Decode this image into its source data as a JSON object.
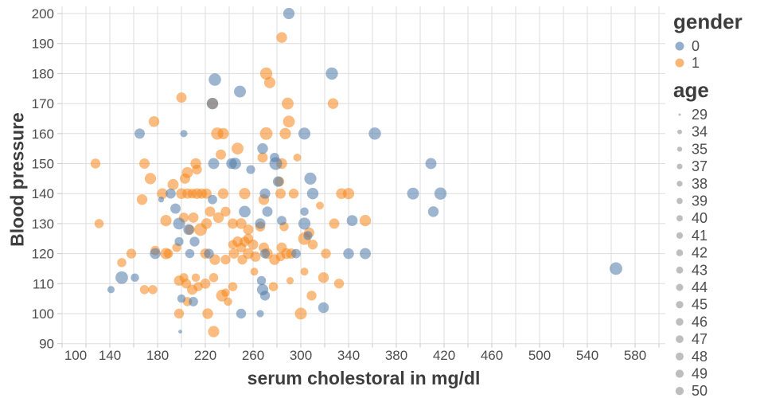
{
  "chart_data": {
    "type": "scatter",
    "title": "",
    "xlabel": "serum cholestoral in mg/dl",
    "ylabel": "Blood pressure",
    "xlim": [
      87,
      604
    ],
    "ylim": [
      87,
      202
    ],
    "x_ticks": [
      100,
      140,
      180,
      220,
      260,
      300,
      340,
      380,
      420,
      460,
      500,
      540,
      580
    ],
    "x_gridline_step": 20,
    "y_ticks": [
      90,
      100,
      110,
      120,
      130,
      140,
      150,
      160,
      170,
      180,
      190,
      200
    ],
    "grid": true,
    "grid_color": "#dddddd",
    "tick_label_color": "#4d4d4d",
    "point_opacity": 0.55,
    "legend": {
      "position": "right",
      "color_legend": {
        "title": "gender",
        "entries": [
          {
            "label": "0",
            "color": "#4c78a8"
          },
          {
            "label": "1",
            "color": "#f58518"
          }
        ]
      },
      "size_legend": {
        "title": "age",
        "symbol_color": "#b7b7b7",
        "entries": [
          29,
          34,
          35,
          37,
          38,
          39,
          40,
          41,
          42,
          43,
          44,
          45,
          46,
          47,
          48,
          49,
          50
        ]
      }
    },
    "series": [
      {
        "name": "gender 1",
        "gender": "1",
        "color": "#f58518",
        "point_format": [
          "serum cholestoral in mg/dl",
          "Blood pressure",
          "age"
        ],
        "points": [
          [
            284,
            192,
            52
          ],
          [
            271,
            180,
            60
          ],
          [
            274,
            177,
            55
          ],
          [
            200,
            172,
            50
          ],
          [
            327,
            170,
            52
          ],
          [
            226,
            170,
            54
          ],
          [
            289,
            170,
            58
          ],
          [
            290,
            164,
            58
          ],
          [
            177,
            164,
            52
          ],
          [
            230,
            160,
            60
          ],
          [
            235,
            160,
            55
          ],
          [
            271,
            160,
            62
          ],
          [
            287,
            160,
            55
          ],
          [
            247,
            155,
            58
          ],
          [
            233,
            153,
            50
          ],
          [
            128,
            150,
            48
          ],
          [
            169,
            150,
            50
          ],
          [
            212,
            150,
            52
          ],
          [
            213,
            148,
            48
          ],
          [
            284,
            150,
            52
          ],
          [
            268,
            152,
            50
          ],
          [
            297,
            152,
            40
          ],
          [
            205,
            147,
            54
          ],
          [
            174,
            145,
            55
          ],
          [
            193,
            143,
            54
          ],
          [
            203,
            145,
            50
          ],
          [
            282,
            144,
            48
          ],
          [
            184,
            140,
            52
          ],
          [
            200,
            140,
            52
          ],
          [
            205,
            140,
            50
          ],
          [
            209,
            140,
            47
          ],
          [
            213,
            140,
            52
          ],
          [
            217,
            140,
            50
          ],
          [
            221,
            140,
            50
          ],
          [
            235,
            140,
            52
          ],
          [
            253,
            140,
            55
          ],
          [
            269,
            138,
            52
          ],
          [
            283,
            140,
            50
          ],
          [
            294,
            140,
            48
          ],
          [
            334,
            140,
            52
          ],
          [
            340,
            140,
            55
          ],
          [
            354,
            131,
            55
          ],
          [
            167,
            138,
            52
          ],
          [
            316,
            136,
            40
          ],
          [
            202,
            132,
            48
          ],
          [
            187,
            131,
            55
          ],
          [
            210,
            132,
            50
          ],
          [
            216,
            128,
            62
          ],
          [
            221,
            130,
            52
          ],
          [
            207,
            128,
            48
          ],
          [
            131,
            130,
            45
          ],
          [
            243,
            130,
            50
          ],
          [
            250,
            130,
            52
          ],
          [
            256,
            128,
            50
          ],
          [
            266,
            129,
            49
          ],
          [
            286,
            129,
            45
          ],
          [
            307,
            127,
            50
          ],
          [
            328,
            130,
            50
          ],
          [
            224,
            134,
            50
          ],
          [
            231,
            132,
            52
          ],
          [
            237,
            134,
            48
          ],
          [
            256,
            125,
            48
          ],
          [
            247,
            124,
            50
          ],
          [
            253,
            124,
            48
          ],
          [
            243,
            123,
            45
          ],
          [
            250,
            122,
            48
          ],
          [
            260,
            123,
            50
          ],
          [
            303,
            125,
            62
          ],
          [
            310,
            123,
            48
          ],
          [
            269,
            122,
            50
          ],
          [
            272,
            120,
            52
          ],
          [
            284,
            122,
            50
          ],
          [
            288,
            120,
            52
          ],
          [
            292,
            120,
            50
          ],
          [
            158,
            120,
            48
          ],
          [
            178,
            121,
            46
          ],
          [
            187,
            120,
            55
          ],
          [
            189,
            120,
            46
          ],
          [
            196,
            122,
            44
          ],
          [
            220,
            120,
            50
          ],
          [
            228,
            118,
            52
          ],
          [
            237,
            118,
            48
          ],
          [
            244,
            120,
            50
          ],
          [
            251,
            118,
            48
          ],
          [
            256,
            120,
            52
          ],
          [
            262,
            119,
            50
          ],
          [
            278,
            118,
            52
          ],
          [
            321,
            120,
            48
          ],
          [
            283,
            119,
            45
          ],
          [
            150,
            117,
            45
          ],
          [
            261,
            114,
            40
          ],
          [
            303,
            114,
            40
          ],
          [
            319,
            112,
            52
          ],
          [
            227,
            112,
            45
          ],
          [
            198,
            111,
            50
          ],
          [
            202,
            112,
            44
          ],
          [
            204,
            110,
            48
          ],
          [
            209,
            108,
            50
          ],
          [
            212,
            112,
            42
          ],
          [
            214,
            109,
            45
          ],
          [
            220,
            110,
            50
          ],
          [
            243,
            109,
            45
          ],
          [
            277,
            109,
            45
          ],
          [
            291,
            111,
            38
          ],
          [
            332,
            110,
            48
          ],
          [
            309,
            106,
            48
          ],
          [
            234,
            106,
            58
          ],
          [
            237,
            107,
            42
          ],
          [
            239,
            104,
            42
          ],
          [
            169,
            108,
            45
          ],
          [
            176,
            108,
            45
          ],
          [
            205,
            104,
            45
          ],
          [
            198,
            100,
            48
          ],
          [
            300,
            100,
            58
          ],
          [
            222,
            100,
            52
          ],
          [
            227,
            94,
            55
          ]
        ]
      },
      {
        "name": "gender 0",
        "gender": "0",
        "color": "#4c78a8",
        "point_format": [
          "serum cholestoral in mg/dl",
          "Blood pressure",
          "age"
        ],
        "points": [
          [
            290,
            200,
            55
          ],
          [
            228,
            178,
            61
          ],
          [
            249,
            174,
            58
          ],
          [
            326,
            180,
            60
          ],
          [
            226,
            170,
            56
          ],
          [
            165,
            160,
            50
          ],
          [
            202,
            160,
            38
          ],
          [
            303,
            160,
            59
          ],
          [
            362,
            160,
            60
          ],
          [
            268,
            155,
            52
          ],
          [
            409,
            150,
            54
          ],
          [
            279,
            150,
            63
          ],
          [
            245,
            150,
            57
          ],
          [
            278,
            152,
            46
          ],
          [
            227,
            150,
            54
          ],
          [
            242,
            150,
            52
          ],
          [
            258,
            148,
            44
          ],
          [
            308,
            145,
            59
          ],
          [
            281,
            144,
            51
          ],
          [
            191,
            140,
            49
          ],
          [
            226,
            138,
            46
          ],
          [
            270,
            140,
            51
          ],
          [
            310,
            140,
            56
          ],
          [
            394,
            140,
            58
          ],
          [
            417,
            140,
            60
          ],
          [
            183,
            138,
            34
          ],
          [
            195,
            135,
            50
          ],
          [
            253,
            134,
            57
          ],
          [
            272,
            134,
            50
          ],
          [
            303,
            134,
            42
          ],
          [
            411,
            134,
            52
          ],
          [
            343,
            131,
            53
          ],
          [
            198,
            130,
            58
          ],
          [
            206,
            128,
            52
          ],
          [
            266,
            130,
            51
          ],
          [
            284,
            131,
            46
          ],
          [
            303,
            130,
            59
          ],
          [
            306,
            126,
            44
          ],
          [
            198,
            124,
            44
          ],
          [
            211,
            124,
            48
          ],
          [
            178,
            120,
            52
          ],
          [
            207,
            120,
            45
          ],
          [
            223,
            120,
            48
          ],
          [
            270,
            120,
            47
          ],
          [
            296,
            120,
            46
          ],
          [
            340,
            120,
            52
          ],
          [
            354,
            120,
            54
          ],
          [
            564,
            115,
            62
          ],
          [
            150,
            112,
            62
          ],
          [
            161,
            112,
            42
          ],
          [
            267,
            111,
            45
          ],
          [
            268,
            108,
            55
          ],
          [
            270,
            106,
            48
          ],
          [
            141,
            108,
            38
          ],
          [
            200,
            105,
            42
          ],
          [
            210,
            104,
            46
          ],
          [
            266,
            100,
            38
          ],
          [
            250,
            100,
            48
          ],
          [
            319,
            102,
            52
          ],
          [
            199,
            94,
            30
          ]
        ]
      }
    ]
  }
}
